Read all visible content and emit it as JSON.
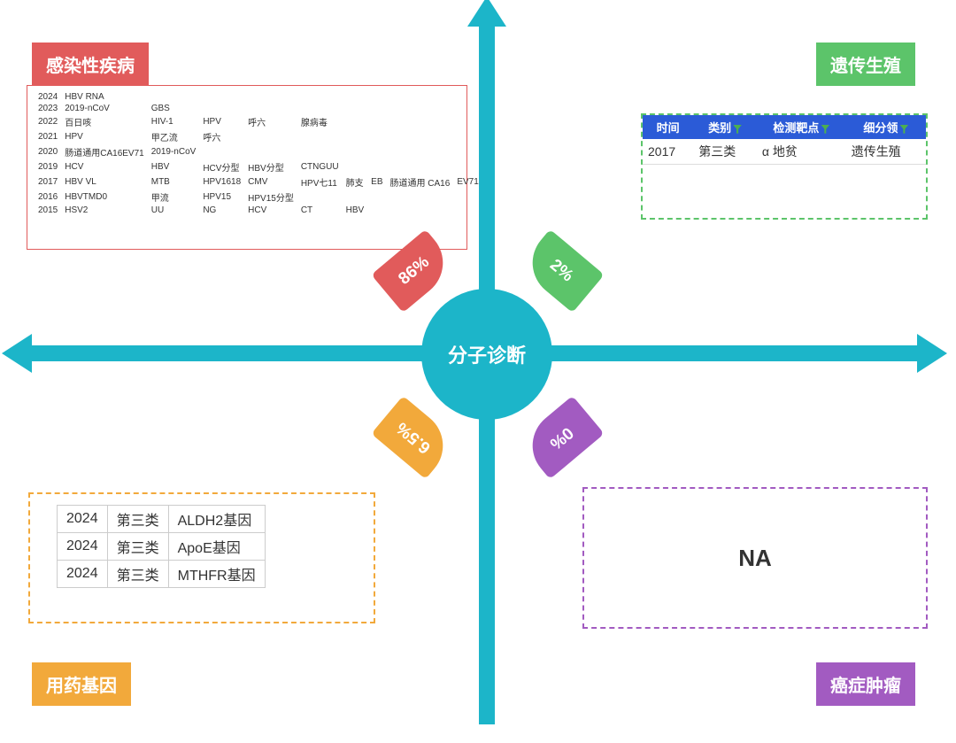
{
  "type": "quadrant-infographic",
  "center": {
    "label": "分子诊断",
    "color": "#1cb5c9",
    "text_color": "#ffffff",
    "fontsize": 22
  },
  "axes": {
    "color": "#1cb5c9",
    "thickness": 18
  },
  "background_color": "#ffffff",
  "quadrants": {
    "top_left": {
      "title": "感染性疾病",
      "title_bg": "#e15b5b",
      "title_color": "#ffffff",
      "percent": "86%",
      "percent_bg": "#e15b5b",
      "panel_border": "#e15b5b",
      "panel_border_style": "solid",
      "rows": [
        [
          "2024",
          "HBV RNA",
          "",
          "",
          "",
          "",
          "",
          "",
          "",
          ""
        ],
        [
          "2023",
          "2019-nCoV",
          "GBS",
          "",
          "",
          "",
          "",
          "",
          "",
          ""
        ],
        [
          "2022",
          "百日咳",
          "HIV-1",
          "HPV",
          "呼六",
          "腺病毒",
          "",
          "",
          "",
          ""
        ],
        [
          "2021",
          "HPV",
          "甲乙流",
          "呼六",
          "",
          "",
          "",
          "",
          "",
          ""
        ],
        [
          "2020",
          "肠道通用CA16EV71",
          "2019-nCoV",
          "",
          "",
          "",
          "",
          "",
          "",
          ""
        ],
        [
          "2019",
          "HCV",
          "HBV",
          "HCV分型",
          "HBV分型",
          "CTNGUU",
          "",
          "",
          "",
          ""
        ],
        [
          "2017",
          "HBV VL",
          "MTB",
          "HPV1618",
          "CMV",
          "HPV七11",
          "肺支",
          "EB",
          "肠道通用 CA16",
          "EV71"
        ],
        [
          "2016",
          "HBVTMD0",
          "甲流",
          "HPV15",
          "HPV15分型",
          "",
          "",
          "",
          "",
          ""
        ],
        [
          "2015",
          "HSV2",
          "UU",
          "NG",
          "HCV",
          "CT",
          "HBV",
          "",
          "",
          ""
        ]
      ]
    },
    "top_right": {
      "title": "遗传生殖",
      "title_bg": "#5cc46a",
      "title_color": "#ffffff",
      "percent": "2%",
      "percent_bg": "#5cc46a",
      "panel_border": "#5cc46a",
      "panel_border_style": "dashed",
      "header": [
        "时间",
        "类别",
        "检测靶点",
        "细分领"
      ],
      "header_bg": "#2b5bd7",
      "rows": [
        [
          "2017",
          "第三类",
          "α 地贫",
          "遗传生殖"
        ]
      ]
    },
    "bottom_left": {
      "title": "用药基因",
      "title_bg": "#f2a93b",
      "title_color": "#ffffff",
      "percent": "6.5%",
      "percent_bg": "#f2a93b",
      "panel_border": "#f2a93b",
      "panel_border_style": "dashed",
      "rows": [
        [
          "2024",
          "第三类",
          "ALDH2基因"
        ],
        [
          "2024",
          "第三类",
          "ApoE基因"
        ],
        [
          "2024",
          "第三类",
          "MTHFR基因"
        ]
      ]
    },
    "bottom_right": {
      "title": "癌症肿瘤",
      "title_bg": "#a25bc1",
      "title_color": "#ffffff",
      "percent": "0%",
      "percent_bg": "#a25bc1",
      "panel_border": "#a25bc1",
      "panel_border_style": "dashed",
      "content": "NA"
    }
  }
}
